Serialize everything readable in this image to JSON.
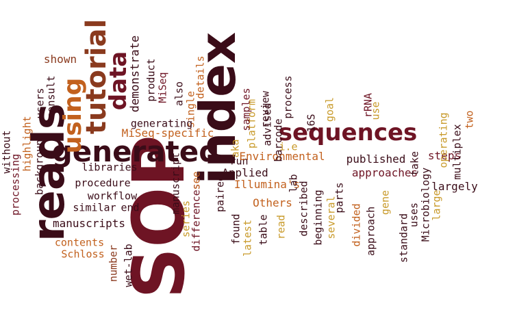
{
  "palette": {
    "maroon": "#6e1424",
    "dark": "#3a0c18",
    "orange": "#c2611e",
    "gold": "#c89a2a",
    "brown": "#8a3a1e"
  },
  "words": [
    {
      "text": "SOP",
      "color": "maroon"
    },
    {
      "text": "index",
      "color": "dark"
    },
    {
      "text": "reads",
      "color": "dark"
    },
    {
      "text": "generated",
      "color": "dark"
    },
    {
      "text": "sequences",
      "color": "maroon"
    },
    {
      "text": "tutorial",
      "color": "brown"
    },
    {
      "text": "using",
      "color": "orange"
    },
    {
      "text": "data",
      "color": "maroon"
    },
    {
      "text": "MiSeq-specific",
      "color": "orange"
    },
    {
      "text": "demonstrate",
      "color": "dark"
    },
    {
      "text": "product",
      "color": "dark"
    },
    {
      "text": "MiSeq",
      "color": "maroon"
    },
    {
      "text": "also",
      "color": "dark"
    },
    {
      "text": "details",
      "color": "orange"
    },
    {
      "text": "single",
      "color": "orange"
    },
    {
      "text": "generating",
      "color": "dark"
    },
    {
      "text": "shown",
      "color": "brown"
    },
    {
      "text": "consult",
      "color": "dark"
    },
    {
      "text": "users",
      "color": "dark"
    },
    {
      "text": "highlight",
      "color": "orange"
    },
    {
      "text": "background",
      "color": "dark"
    },
    {
      "text": "processing",
      "color": "maroon"
    },
    {
      "text": "without",
      "color": "dark"
    },
    {
      "text": "libraries",
      "color": "dark"
    },
    {
      "text": "procedure",
      "color": "dark"
    },
    {
      "text": "workflow",
      "color": "dark"
    },
    {
      "text": "similar",
      "color": "dark"
    },
    {
      "text": "end",
      "color": "dark"
    },
    {
      "text": "manuscripts",
      "color": "dark"
    },
    {
      "text": "contents",
      "color": "orange"
    },
    {
      "text": "Schloss",
      "color": "orange"
    },
    {
      "text": "number",
      "color": "brown"
    },
    {
      "text": "wet-lab",
      "color": "dark"
    },
    {
      "text": "manuscript",
      "color": "dark"
    },
    {
      "text": "series",
      "color": "gold"
    },
    {
      "text": "differences",
      "color": "maroon"
    },
    {
      "text": "see",
      "color": "orange"
    },
    {
      "text": "paired",
      "color": "dark"
    },
    {
      "text": "Applied",
      "color": "dark"
    },
    {
      "text": "found",
      "color": "dark"
    },
    {
      "text": "latest",
      "color": "gold"
    },
    {
      "text": "Illumina's",
      "color": "orange"
    },
    {
      "text": "Others",
      "color": "orange"
    },
    {
      "text": "table",
      "color": "dark"
    },
    {
      "text": "read",
      "color": "gold"
    },
    {
      "text": "run",
      "color": "dark"
    },
    {
      "text": "Environmental",
      "color": "orange"
    },
    {
      "text": "aka",
      "color": "gold"
    },
    {
      "text": "platform",
      "color": "gold"
    },
    {
      "text": "samples",
      "color": "maroon"
    },
    {
      "text": "review",
      "color": "dark"
    },
    {
      "text": "advised",
      "color": "dark"
    },
    {
      "text": "barcode",
      "color": "dark"
    },
    {
      "text": "i.e",
      "color": "gold"
    },
    {
      "text": "lab",
      "color": "dark"
    },
    {
      "text": "described",
      "color": "dark"
    },
    {
      "text": "process",
      "color": "dark"
    },
    {
      "text": "16S",
      "color": "dark"
    },
    {
      "text": "beginning",
      "color": "dark"
    },
    {
      "text": "several",
      "color": "gold"
    },
    {
      "text": "parts",
      "color": "dark"
    },
    {
      "text": "divided",
      "color": "orange"
    },
    {
      "text": "approach",
      "color": "dark"
    },
    {
      "text": "published",
      "color": "dark"
    },
    {
      "text": "approaches",
      "color": "maroon"
    },
    {
      "text": "goal",
      "color": "gold"
    },
    {
      "text": "rRNA",
      "color": "maroon"
    },
    {
      "text": "use",
      "color": "gold"
    },
    {
      "text": "gene",
      "color": "gold"
    },
    {
      "text": "standard",
      "color": "dark"
    },
    {
      "text": "uses",
      "color": "dark"
    },
    {
      "text": "Microbiology",
      "color": "dark"
    },
    {
      "text": "take",
      "color": "dark"
    },
    {
      "text": "large",
      "color": "gold"
    },
    {
      "text": "largely",
      "color": "dark"
    },
    {
      "text": "steps",
      "color": "maroon"
    },
    {
      "text": "operating",
      "color": "gold"
    },
    {
      "text": "multiplex",
      "color": "dark"
    },
    {
      "text": "two",
      "color": "orange"
    }
  ]
}
